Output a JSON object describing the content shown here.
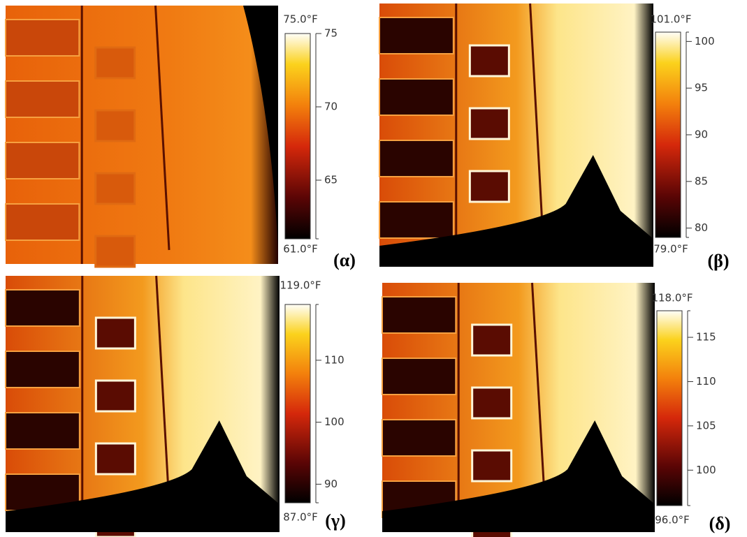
{
  "panels": [
    {
      "label": "(α)",
      "range": [
        {
          "value": 61,
          "label": "61.0°F"
        },
        {
          "value": 75,
          "label": "75.0°F"
        }
      ],
      "ticks": [
        65,
        70,
        75
      ]
    },
    {
      "label": "(β)",
      "range": [
        {
          "value": 79,
          "label": "79.0°F"
        },
        {
          "value": 101,
          "label": "101.0°F"
        }
      ],
      "ticks": [
        80,
        85,
        90,
        95,
        100
      ]
    },
    {
      "label": "(γ)",
      "range": [
        {
          "value": 87,
          "label": "87.0°F"
        },
        {
          "value": 119,
          "label": "119.0°F"
        }
      ],
      "ticks": [
        90,
        100,
        110
      ]
    },
    {
      "label": "(δ)",
      "range": [
        {
          "value": 96,
          "label": "96.0°F"
        },
        {
          "value": 118,
          "label": "118.0°F"
        }
      ],
      "ticks": [
        100,
        105,
        110,
        115
      ]
    }
  ]
}
